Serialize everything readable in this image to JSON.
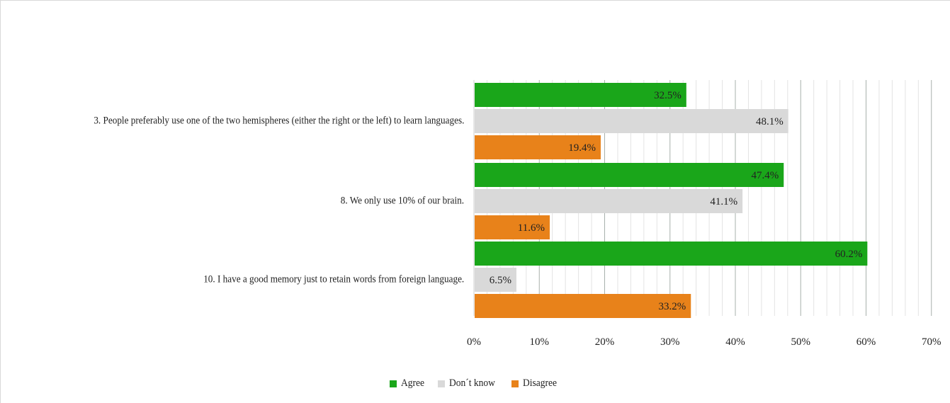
{
  "chart_data": {
    "type": "bar",
    "orientation": "horizontal",
    "title": "",
    "xlabel": "",
    "ylabel": "",
    "xlim": [
      0,
      70
    ],
    "x_ticks": [
      "0%",
      "10%",
      "20%",
      "30%",
      "40%",
      "50%",
      "60%",
      "70%"
    ],
    "categories": [
      "3. People preferably use one of the two hemispheres (either the right or the left) to learn languages.",
      "8. We only use 10% of our brain.",
      "10. I have a good memory just to retain words from foreign language."
    ],
    "series": [
      {
        "name": "Agree",
        "color": "#1aa61a",
        "values": [
          32.5,
          47.4,
          60.2
        ],
        "labels": [
          "32.5%",
          "47.4%",
          "60.2%"
        ]
      },
      {
        "name": "Don´t know",
        "color": "#d9d9d9",
        "values": [
          48.1,
          41.1,
          6.5
        ],
        "labels": [
          "48.1%",
          "41.1%",
          "6.5%"
        ]
      },
      {
        "name": "Disagree",
        "color": "#e8821a",
        "values": [
          19.4,
          11.6,
          33.2
        ],
        "labels": [
          "19.4%",
          "11.6%",
          "33.2%"
        ]
      }
    ],
    "grid": true,
    "legend_position": "bottom"
  }
}
